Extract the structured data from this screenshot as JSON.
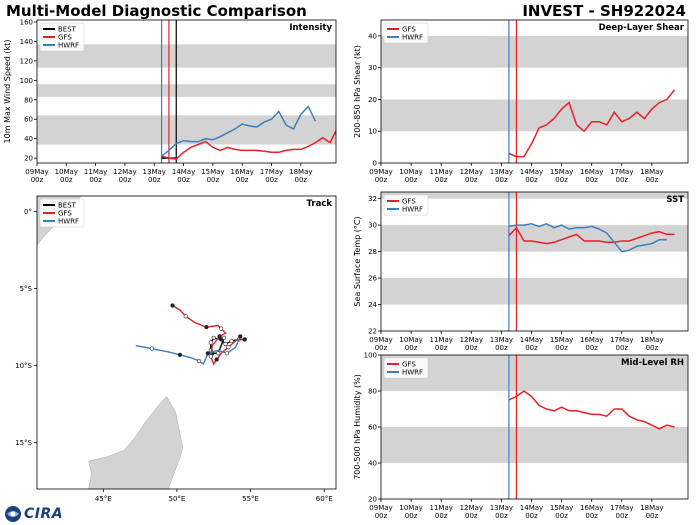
{
  "header": {
    "title": "Multi-Model Diagnostic Comparison",
    "storm": "INVEST - SH922024"
  },
  "logo": {
    "text": "CIRA"
  },
  "colors": {
    "BEST": "#000000",
    "GFS": "#e8202a",
    "HWRF": "#3a80bf",
    "band": "#d3d3d3",
    "land": "#d3d3d3",
    "ocean": "#ffffff"
  },
  "chart_data": [
    {
      "id": "intensity",
      "type": "line",
      "title": "Intensity",
      "ylabel": "10m Max Wind Speed (kt)",
      "xlabel": "",
      "ylim": [
        15,
        162
      ],
      "yticks": [
        20,
        40,
        60,
        80,
        100,
        120,
        140,
        160
      ],
      "xlim": [
        0,
        10.2
      ],
      "xticks": [
        "09May\n00z",
        "10May\n00z",
        "11May\n00z",
        "12May\n00z",
        "13May\n00z",
        "14May\n00z",
        "15May\n00z",
        "16May\n00z",
        "17May\n00z",
        "18May\n00z"
      ],
      "bands": [
        [
          34,
          64
        ],
        [
          83,
          96
        ],
        [
          113,
          137
        ]
      ],
      "vlines": [
        {
          "x": 4.25,
          "series": "HWRF"
        },
        {
          "x": 4.5,
          "series": "GFS"
        },
        {
          "x": 4.75,
          "series": "BEST"
        }
      ],
      "legend": [
        "BEST",
        "GFS",
        "HWRF"
      ],
      "legend_position": "top-left",
      "series": [
        {
          "name": "BEST",
          "x": [
            4.25,
            4.5,
            4.75
          ],
          "y": [
            20,
            20,
            20
          ]
        },
        {
          "name": "GFS",
          "x": [
            4.25,
            4.5,
            4.75,
            5.0,
            5.25,
            5.5,
            5.75,
            6.0,
            6.25,
            6.5,
            6.75,
            7.0,
            7.25,
            7.5,
            7.75,
            8.0,
            8.25,
            8.5,
            8.75,
            9.0,
            9.25,
            9.5,
            9.75,
            10.0,
            10.2
          ],
          "y": [
            22,
            20,
            19,
            26,
            31,
            34,
            37,
            31,
            28,
            31,
            29,
            28,
            28,
            28,
            27,
            26,
            26,
            28,
            29,
            29,
            32,
            36,
            41,
            36,
            48
          ]
        },
        {
          "name": "HWRF",
          "x": [
            4.25,
            4.5,
            4.75,
            5.0,
            5.25,
            5.5,
            5.75,
            6.0,
            6.25,
            6.5,
            6.75,
            7.0,
            7.25,
            7.5,
            7.75,
            8.0,
            8.25,
            8.5,
            8.75,
            9.0,
            9.25,
            9.5,
            9.75,
            10.0
          ],
          "y": [
            22,
            28,
            35,
            38,
            37,
            37,
            40,
            39,
            42,
            46,
            50,
            55,
            53,
            52,
            57,
            60,
            68,
            54,
            50,
            65,
            73,
            58,
            null,
            null
          ]
        }
      ]
    },
    {
      "id": "shear",
      "type": "line",
      "title": "Deep-Layer Shear",
      "ylabel": "200-850 hPa Shear (kt)",
      "xlabel": "",
      "ylim": [
        0,
        45
      ],
      "yticks": [
        0,
        10,
        20,
        30,
        40
      ],
      "xlim": [
        0,
        10.2
      ],
      "xticks": [
        "09May\n00z",
        "10May\n00z",
        "11May\n00z",
        "12May\n00z",
        "13May\n00z",
        "14May\n00z",
        "15May\n00z",
        "16May\n00z",
        "17May\n00z",
        "18May\n00z"
      ],
      "bands": [
        [
          10,
          20
        ],
        [
          30,
          40
        ]
      ],
      "vlines": [
        {
          "x": 4.25,
          "series": "HWRF"
        },
        {
          "x": 4.5,
          "series": "GFS"
        }
      ],
      "legend": [
        "GFS",
        "HWRF"
      ],
      "legend_position": "top-left",
      "series": [
        {
          "name": "GFS",
          "x": [
            4.25,
            4.5,
            4.75,
            5.0,
            5.25,
            5.5,
            5.75,
            6.0,
            6.25,
            6.5,
            6.75,
            7.0,
            7.25,
            7.5,
            7.75,
            8.0,
            8.25,
            8.5,
            8.75,
            9.0,
            9.25,
            9.5,
            9.75,
            10.0,
            10.2
          ],
          "y": [
            3,
            2,
            2,
            6,
            11,
            12,
            14,
            17,
            19,
            12,
            10,
            13,
            13,
            12,
            16,
            13,
            14,
            16,
            14,
            17,
            19,
            20,
            23,
            null,
            null
          ]
        },
        {
          "name": "HWRF",
          "x": [],
          "y": []
        }
      ]
    },
    {
      "id": "sst",
      "type": "line",
      "title": "SST",
      "ylabel": "Sea Surface Temp (°C)",
      "xlabel": "",
      "ylim": [
        22,
        32.5
      ],
      "yticks": [
        22,
        24,
        26,
        28,
        30,
        32
      ],
      "xlim": [
        0,
        10.2
      ],
      "xticks": [
        "09May\n00z",
        "10May\n00z",
        "11May\n00z",
        "12May\n00z",
        "13May\n00z",
        "14May\n00z",
        "15May\n00z",
        "16May\n00z",
        "17May\n00z",
        "18May\n00z"
      ],
      "bands": [
        [
          24,
          26
        ],
        [
          28,
          30
        ],
        [
          32,
          32.5
        ]
      ],
      "vlines": [
        {
          "x": 4.25,
          "series": "HWRF"
        },
        {
          "x": 4.5,
          "series": "GFS"
        }
      ],
      "legend": [
        "GFS",
        "HWRF"
      ],
      "legend_position": "top-left",
      "series": [
        {
          "name": "GFS",
          "x": [
            4.25,
            4.5,
            4.75,
            5.0,
            5.25,
            5.5,
            5.75,
            6.0,
            6.25,
            6.5,
            6.75,
            7.0,
            7.25,
            7.5,
            7.75,
            8.0,
            8.25,
            8.5,
            8.75,
            9.0,
            9.25,
            9.5,
            9.75,
            10.0,
            10.2
          ],
          "y": [
            29.2,
            29.8,
            28.8,
            28.8,
            28.7,
            28.6,
            28.7,
            28.9,
            29.1,
            29.3,
            28.8,
            28.8,
            28.8,
            28.7,
            28.7,
            28.8,
            28.8,
            29.0,
            29.2,
            29.4,
            29.5,
            29.3,
            29.3,
            null,
            null
          ]
        },
        {
          "name": "HWRF",
          "x": [
            4.25,
            4.5,
            4.75,
            5.0,
            5.25,
            5.5,
            5.75,
            6.0,
            6.25,
            6.5,
            6.75,
            7.0,
            7.25,
            7.5,
            7.75,
            8.0,
            8.25,
            8.5,
            8.75,
            9.0,
            9.25,
            9.5
          ],
          "y": [
            29.9,
            30.0,
            30.0,
            30.1,
            29.9,
            30.1,
            29.8,
            30.0,
            29.7,
            29.8,
            29.8,
            29.9,
            29.7,
            29.4,
            28.7,
            28.0,
            28.1,
            28.4,
            28.5,
            28.6,
            28.9,
            28.9
          ]
        }
      ]
    },
    {
      "id": "rh",
      "type": "line",
      "title": "Mid-Level RH",
      "ylabel": "700-500 hPa Humidity (%)",
      "xlabel": "",
      "ylim": [
        20,
        100
      ],
      "yticks": [
        20,
        40,
        60,
        80,
        100
      ],
      "xlim": [
        0,
        10.2
      ],
      "xticks": [
        "09May\n00z",
        "10May\n00z",
        "11May\n00z",
        "12May\n00z",
        "13May\n00z",
        "14May\n00z",
        "15May\n00z",
        "16May\n00z",
        "17May\n00z",
        "18May\n00z"
      ],
      "bands": [
        [
          40,
          60
        ],
        [
          80,
          100
        ]
      ],
      "vlines": [
        {
          "x": 4.25,
          "series": "HWRF"
        },
        {
          "x": 4.5,
          "series": "GFS"
        }
      ],
      "legend": [
        "GFS",
        "HWRF"
      ],
      "legend_position": "top-left",
      "series": [
        {
          "name": "GFS",
          "x": [
            4.25,
            4.5,
            4.75,
            5.0,
            5.25,
            5.5,
            5.75,
            6.0,
            6.25,
            6.5,
            6.75,
            7.0,
            7.25,
            7.5,
            7.75,
            8.0,
            8.25,
            8.5,
            8.75,
            9.0,
            9.25,
            9.5,
            9.75,
            10.0,
            10.2
          ],
          "y": [
            75,
            77,
            80,
            77,
            72,
            70,
            69,
            71,
            69,
            69,
            68,
            67,
            67,
            66,
            70,
            70,
            66,
            64,
            63,
            61,
            59,
            61,
            60,
            null,
            null
          ]
        },
        {
          "name": "HWRF",
          "x": [],
          "y": []
        }
      ]
    },
    {
      "id": "track",
      "type": "scatter",
      "title": "Track",
      "xlabel": "",
      "ylabel": "",
      "xlim": [
        40.5,
        60.8
      ],
      "ylim": [
        -18,
        1
      ],
      "xticks": [
        {
          "v": 45,
          "label": "45°E"
        },
        {
          "v": 50,
          "label": "50°E"
        },
        {
          "v": 55,
          "label": "55°E"
        },
        {
          "v": 60,
          "label": "60°E"
        }
      ],
      "yticks": [
        {
          "v": 0,
          "label": "0°"
        },
        {
          "v": -5,
          "label": "5°S"
        },
        {
          "v": -10,
          "label": "10°S"
        },
        {
          "v": -15,
          "label": "15°S"
        }
      ],
      "legend": [
        "BEST",
        "GFS",
        "HWRF"
      ],
      "legend_position": "top-left",
      "series": [
        {
          "name": "BEST",
          "lon": [
            54.6,
            54.2,
            53.7,
            53.3,
            53.0,
            52.5,
            52.3,
            52.3,
            52.4,
            52.8,
            53.2
          ],
          "lat": [
            -8.3,
            -8.3,
            -8.4,
            -8.6,
            -8.3,
            -8.2,
            -8.5,
            -9.0,
            -9.2,
            -9.2,
            -8.2
          ]
        },
        {
          "name": "GFS",
          "lon": [
            54.6,
            54.1,
            53.5,
            53.0,
            52.7,
            52.5,
            52.3,
            52.4,
            52.9,
            53.3,
            53.0,
            52.8,
            52.0,
            51.2,
            50.6,
            50.2,
            49.7
          ],
          "lat": [
            -8.3,
            -8.3,
            -8.8,
            -9.2,
            -9.6,
            -9.9,
            -9.4,
            -8.7,
            -8.1,
            -7.9,
            -7.6,
            -7.4,
            -7.5,
            -7.2,
            -6.8,
            -6.4,
            -6.1
          ]
        },
        {
          "name": "HWRF",
          "lon": [
            54.3,
            54.0,
            53.4,
            52.8,
            52.1,
            51.8,
            51.5,
            51.0,
            50.2,
            49.4,
            48.3,
            47.2
          ],
          "lat": [
            -8.1,
            -8.8,
            -9.2,
            -9.0,
            -9.2,
            -9.9,
            -9.7,
            -9.5,
            -9.3,
            -9.1,
            -8.9,
            -8.7
          ]
        }
      ]
    }
  ]
}
